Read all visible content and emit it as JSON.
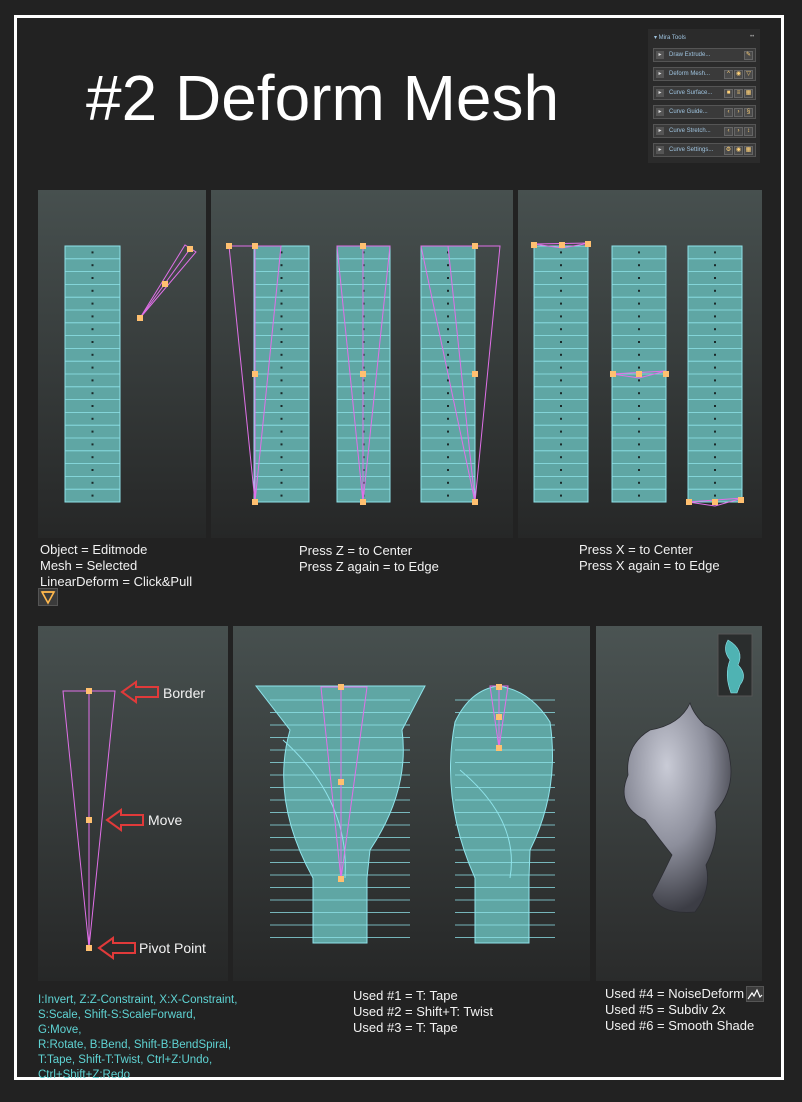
{
  "title": "#2 Deform Mesh",
  "mira_tools": {
    "header": "▾ Mira Tools",
    "more": "••",
    "rows": [
      {
        "label": "Draw Extrude..."
      },
      {
        "label": "Deform Mesh..."
      },
      {
        "label": "Curve Surface..."
      },
      {
        "label": "Curve Guide..."
      },
      {
        "label": "Curve Stretch..."
      },
      {
        "label": "Curve Settings..."
      }
    ]
  },
  "captions": {
    "setup": [
      "Object = Editmode",
      "Mesh = Selected",
      "LinearDeform = Click&Pull"
    ],
    "press_z": [
      "Press Z = to Center",
      "Press Z again = to Edge"
    ],
    "press_x": [
      "Press X = to Center",
      "Press X again = to Edge"
    ],
    "used_tape": [
      "Used #1 = T: Tape",
      "Used #2 = Shift+T: Twist",
      "Used #3 = T: Tape"
    ],
    "used_noise": [
      "Used #4 = NoiseDeform",
      "Used #5 = Subdiv 2x",
      "Used #6 = Smooth Shade"
    ]
  },
  "labels": {
    "border": "Border",
    "move": "Move",
    "pivot": "Pivot Point"
  },
  "hotkeys": [
    "I:Invert, Z:Z-Constraint, X:X-Constraint,",
    "S:Scale, Shift-S:ScaleForward, G:Move,",
    "R:Rotate, B:Bend, Shift-B:BendSpiral,",
    "T:Tape, Shift-T:Twist, Ctrl+Z:Undo,",
    "Ctrl+Shift+Z:Redo"
  ],
  "colors": {
    "mesh_fill": "#5fa6a4",
    "mesh_edge": "#8fe3ea",
    "deformer_line": "#e070e8",
    "handle": "#ffc070",
    "arrow_outline": "#e03a3a",
    "hotkey_text": "#5fd4d4"
  },
  "icons": {
    "linear_deform": "linear-deform-icon",
    "noise_deform": "noise-deform-icon"
  }
}
